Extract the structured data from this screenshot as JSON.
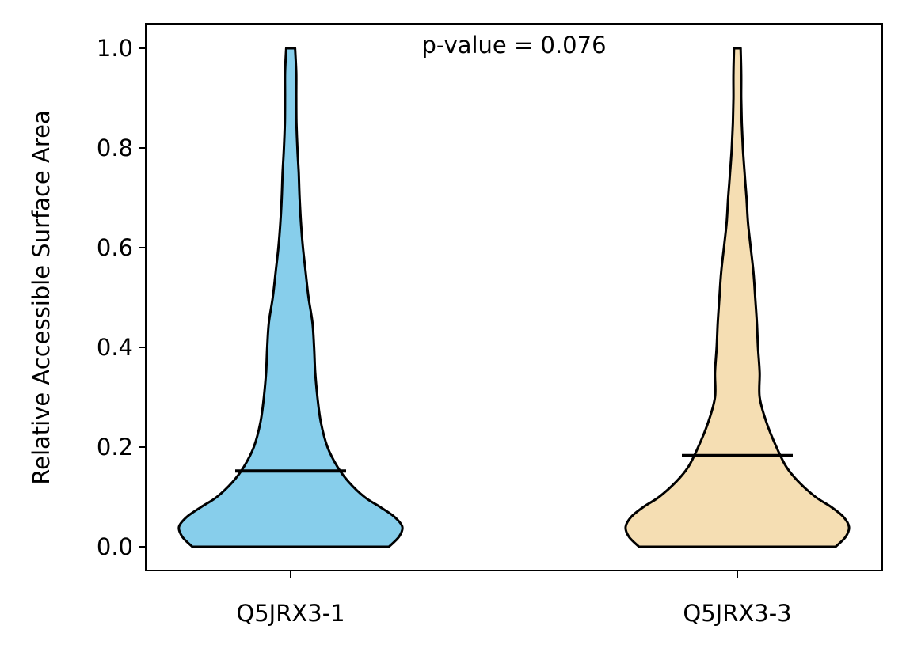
{
  "chart_data": {
    "type": "violin",
    "title": "",
    "xlabel": "",
    "ylabel": "Relative Accessible Surface Area",
    "ylim": [
      -0.05,
      1.05
    ],
    "yticks": [
      0.0,
      0.2,
      0.4,
      0.6,
      0.8,
      1.0
    ],
    "ytick_labels": [
      "0.0",
      "0.2",
      "0.4",
      "0.6",
      "0.8",
      "1.0"
    ],
    "categories": [
      "Q5JRX3-1",
      "Q5JRX3-3"
    ],
    "annotation": "p-value = 0.076",
    "grid": false,
    "legend": "none",
    "series": [
      {
        "category": "Q5JRX3-1",
        "color": "#87CEEB",
        "median": 0.152,
        "density": [
          [
            0.0,
            0.88
          ],
          [
            0.02,
            0.97
          ],
          [
            0.04,
            1.0
          ],
          [
            0.06,
            0.93
          ],
          [
            0.08,
            0.8
          ],
          [
            0.1,
            0.66
          ],
          [
            0.13,
            0.52
          ],
          [
            0.16,
            0.42
          ],
          [
            0.2,
            0.33
          ],
          [
            0.25,
            0.27
          ],
          [
            0.3,
            0.24
          ],
          [
            0.35,
            0.22
          ],
          [
            0.4,
            0.21
          ],
          [
            0.45,
            0.195
          ],
          [
            0.5,
            0.16
          ],
          [
            0.55,
            0.135
          ],
          [
            0.6,
            0.11
          ],
          [
            0.65,
            0.092
          ],
          [
            0.7,
            0.08
          ],
          [
            0.75,
            0.072
          ],
          [
            0.8,
            0.06
          ],
          [
            0.85,
            0.052
          ],
          [
            0.9,
            0.05
          ],
          [
            0.95,
            0.05
          ],
          [
            1.0,
            0.04
          ]
        ]
      },
      {
        "category": "Q5JRX3-3",
        "color": "#F5DEB3",
        "median": 0.183,
        "density": [
          [
            0.0,
            0.88
          ],
          [
            0.02,
            0.97
          ],
          [
            0.04,
            1.0
          ],
          [
            0.06,
            0.95
          ],
          [
            0.08,
            0.84
          ],
          [
            0.1,
            0.7
          ],
          [
            0.13,
            0.55
          ],
          [
            0.16,
            0.44
          ],
          [
            0.2,
            0.35
          ],
          [
            0.25,
            0.26
          ],
          [
            0.3,
            0.2
          ],
          [
            0.35,
            0.2
          ],
          [
            0.4,
            0.185
          ],
          [
            0.45,
            0.175
          ],
          [
            0.5,
            0.16
          ],
          [
            0.55,
            0.145
          ],
          [
            0.6,
            0.12
          ],
          [
            0.65,
            0.096
          ],
          [
            0.7,
            0.082
          ],
          [
            0.75,
            0.065
          ],
          [
            0.8,
            0.05
          ],
          [
            0.85,
            0.04
          ],
          [
            0.9,
            0.035
          ],
          [
            0.95,
            0.035
          ],
          [
            1.0,
            0.03
          ]
        ]
      }
    ]
  }
}
